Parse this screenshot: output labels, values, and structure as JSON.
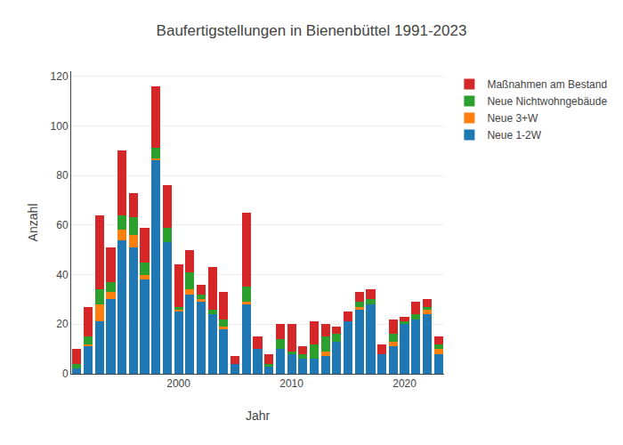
{
  "chart_data": {
    "type": "bar",
    "title": "Baufertigstellungen in Bienenbüttel 1991-2023",
    "x_label": "Jahr",
    "y_label": "Anzahl",
    "x": [
      1991,
      1992,
      1993,
      1994,
      1995,
      1996,
      1997,
      1998,
      1999,
      2000,
      2001,
      2002,
      2003,
      2004,
      2005,
      2006,
      2007,
      2008,
      2009,
      2010,
      2011,
      2012,
      2013,
      2014,
      2015,
      2016,
      2017,
      2018,
      2019,
      2020,
      2021,
      2022,
      2023
    ],
    "series": [
      {
        "name": "Neue 1-2W",
        "color": "#1f77b4",
        "values": [
          2,
          11,
          21,
          30,
          54,
          51,
          38,
          86,
          53,
          25,
          32,
          29,
          24,
          18,
          4,
          28,
          10,
          3,
          10,
          8,
          6,
          6,
          7,
          13,
          21,
          26,
          28,
          8,
          11,
          20,
          22,
          24,
          8
        ]
      },
      {
        "name": "Neue 3+W",
        "color": "#ff7f0e",
        "values": [
          0,
          1,
          7,
          3,
          4,
          5,
          2,
          1,
          0,
          1,
          2,
          1,
          0,
          1,
          0,
          1,
          0,
          0,
          0,
          0,
          0,
          0,
          2,
          0,
          0,
          1,
          0,
          0,
          2,
          0,
          0,
          2,
          2
        ]
      },
      {
        "name": "Neue Nichtwohngebäude",
        "color": "#2ca02c",
        "values": [
          2,
          3,
          6,
          4,
          6,
          7,
          5,
          4,
          6,
          1,
          7,
          2,
          2,
          3,
          0,
          6,
          0,
          1,
          4,
          1,
          2,
          6,
          6,
          3,
          0,
          2,
          2,
          0,
          3,
          1,
          2,
          1,
          2
        ]
      },
      {
        "name": "Maßnahmen am Bestand",
        "color": "#d62728",
        "values": [
          6,
          12,
          30,
          14,
          26,
          10,
          14,
          25,
          17,
          17,
          9,
          4,
          17,
          11,
          3,
          30,
          5,
          4,
          6,
          11,
          3,
          9,
          5,
          3,
          4,
          4,
          4,
          4,
          6,
          2,
          5,
          3,
          3
        ]
      }
    ],
    "xlim": [
      1990.5,
      2023.5
    ],
    "xticks": [
      2000,
      2010,
      2020
    ],
    "ylim": [
      0,
      122
    ],
    "yticks": [
      0,
      20,
      40,
      60,
      80,
      100,
      120
    ],
    "stacked": true,
    "grid": true,
    "legend": "right"
  }
}
